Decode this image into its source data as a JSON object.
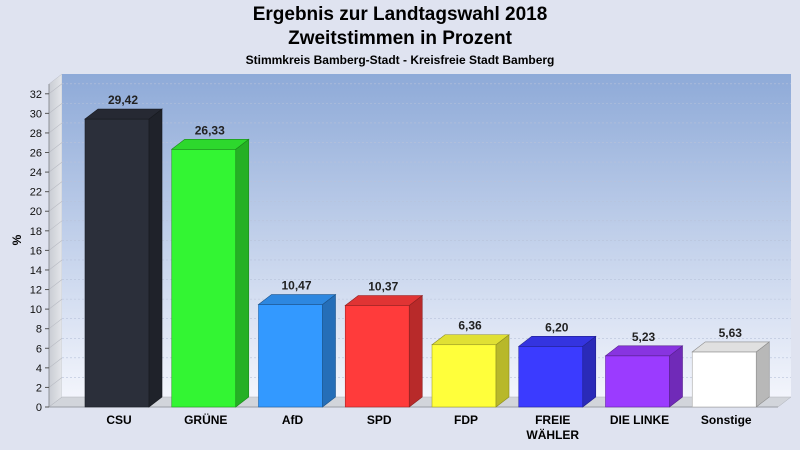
{
  "title": "Ergebnis zur Landtagswahl 2018",
  "subtitle": "Zweitstimmen in Prozent",
  "subsubtitle": "Stimmkreis Bamberg-Stadt - Kreisfreie Stadt Bamberg",
  "chart_data": {
    "type": "bar",
    "categories": [
      "CSU",
      "GRÜNE",
      "AfD",
      "SPD",
      "FDP",
      "FREIE WÄHLER",
      "DIE LINKE",
      "Sonstige"
    ],
    "category_lines": [
      [
        "CSU"
      ],
      [
        "GRÜNE"
      ],
      [
        "AfD"
      ],
      [
        "SPD"
      ],
      [
        "FDP"
      ],
      [
        "FREIE",
        "WÄHLER"
      ],
      [
        "DIE LINKE"
      ],
      [
        "Sonstige"
      ]
    ],
    "values": [
      29.42,
      26.33,
      10.47,
      10.37,
      6.36,
      6.2,
      5.23,
      5.63
    ],
    "value_labels": [
      "29,42",
      "26,33",
      "10,47",
      "10,37",
      "6,36",
      "6,20",
      "5,23",
      "5,63"
    ],
    "colors": [
      "#2b2f3a",
      "#33f533",
      "#3399ff",
      "#ff3b3b",
      "#ffff3b",
      "#3b3bff",
      "#9b3bff",
      "#ffffff"
    ],
    "ylabel": "%",
    "ylim": [
      0,
      33
    ],
    "yticks": [
      0,
      2,
      4,
      6,
      8,
      10,
      12,
      14,
      16,
      18,
      20,
      22,
      24,
      26,
      28,
      30,
      32
    ],
    "grid": true
  }
}
